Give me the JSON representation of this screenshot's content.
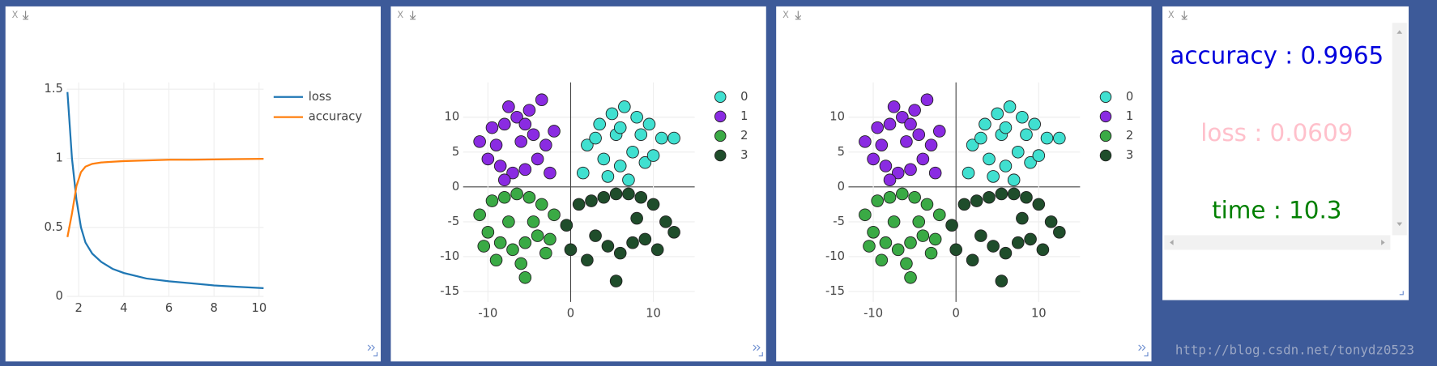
{
  "chart_data": [
    {
      "type": "line",
      "xlim": [
        1.47,
        10.2
      ],
      "ylim": [
        0,
        1.55
      ],
      "xticks": [
        2,
        4,
        6,
        8,
        10
      ],
      "yticks": [
        0,
        0.5,
        1,
        1.5
      ],
      "grid": true,
      "x": [
        1.5,
        1.7,
        1.9,
        2.1,
        2.3,
        2.6,
        3,
        3.5,
        4,
        5,
        6,
        7,
        8,
        9,
        10.2
      ],
      "series": [
        {
          "name": "loss",
          "color": "#1f77b4",
          "values": [
            1.48,
            1.0,
            0.7,
            0.5,
            0.39,
            0.31,
            0.25,
            0.2,
            0.17,
            0.13,
            0.11,
            0.095,
            0.08,
            0.07,
            0.06
          ]
        },
        {
          "name": "accuracy",
          "color": "#ff7f0e",
          "values": [
            0.43,
            0.6,
            0.8,
            0.9,
            0.94,
            0.96,
            0.97,
            0.975,
            0.98,
            0.985,
            0.99,
            0.99,
            0.992,
            0.994,
            0.9965
          ]
        }
      ]
    },
    {
      "type": "scatter",
      "xlim": [
        -13,
        15
      ],
      "ylim": [
        -16.5,
        15
      ],
      "xticks": [
        -10,
        0,
        10
      ],
      "yticks": [
        -15,
        -10,
        -5,
        0,
        5,
        10
      ],
      "grid": true,
      "series": [
        {
          "name": "0",
          "color": "#40e0d0",
          "x": [
            2,
            3.5,
            5,
            6.5,
            8,
            9.5,
            11,
            4,
            6,
            7.5,
            9,
            3,
            5.5,
            8.5,
            10,
            7,
            12.5,
            6,
            4.5,
            1.5
          ],
          "values": [
            6,
            9,
            10.5,
            11.5,
            10,
            9,
            7,
            4,
            3,
            5,
            3.5,
            7,
            7.5,
            7.5,
            4.5,
            1,
            7,
            8.5,
            1.5,
            2
          ]
        },
        {
          "name": "1",
          "color": "#8a2be2",
          "x": [
            -11,
            -9.5,
            -8,
            -6.5,
            -5,
            -3.5,
            -2,
            -10,
            -8.5,
            -7,
            -5.5,
            -4,
            -9,
            -6,
            -3,
            -7.5,
            -4.5,
            -2.5,
            -5.5,
            -8
          ],
          "values": [
            6.5,
            8.5,
            9,
            10,
            11,
            12.5,
            8,
            4,
            3,
            2,
            2.5,
            4,
            6,
            6.5,
            6,
            11.5,
            7.5,
            2,
            9,
            1
          ]
        },
        {
          "name": "2",
          "color": "#3aaa45",
          "x": [
            -11,
            -9.5,
            -8,
            -6.5,
            -5,
            -3.5,
            -2,
            -10,
            -8.5,
            -7,
            -5.5,
            -4,
            -9,
            -6,
            -3,
            -7.5,
            -4.5,
            -5.5,
            -10.5,
            -2.5
          ],
          "values": [
            -4,
            -2,
            -1.5,
            -1,
            -1.5,
            -2.5,
            -4,
            -6.5,
            -8,
            -9,
            -8,
            -7,
            -10.5,
            -11,
            -9.5,
            -5,
            -5,
            -13,
            -8.5,
            -7.5
          ]
        },
        {
          "name": "3",
          "color": "#1f4d2b",
          "x": [
            -0.5,
            1,
            2.5,
            4,
            5.5,
            7,
            8.5,
            10,
            11.5,
            12.5,
            3,
            4.5,
            6,
            7.5,
            9,
            5.5,
            8,
            2,
            10.5,
            0
          ],
          "values": [
            -5.5,
            -2.5,
            -2,
            -1.5,
            -1,
            -1,
            -1.5,
            -2.5,
            -5,
            -6.5,
            -7,
            -8.5,
            -9.5,
            -8,
            -7.5,
            -13.5,
            -4.5,
            -10.5,
            -9,
            -9
          ]
        }
      ]
    },
    {
      "type": "scatter",
      "xlim": [
        -13,
        15
      ],
      "ylim": [
        -16.5,
        15
      ],
      "xticks": [
        -10,
        0,
        10
      ],
      "yticks": [
        -15,
        -10,
        -5,
        0,
        5,
        10
      ],
      "grid": true,
      "series": [
        {
          "name": "0",
          "color": "#40e0d0",
          "x": [
            2,
            3.5,
            5,
            6.5,
            8,
            9.5,
            11,
            4,
            6,
            7.5,
            9,
            3,
            5.5,
            8.5,
            10,
            7,
            12.5,
            6,
            4.5,
            1.5
          ],
          "values": [
            6,
            9,
            10.5,
            11.5,
            10,
            9,
            7,
            4,
            3,
            5,
            3.5,
            7,
            7.5,
            7.5,
            4.5,
            1,
            7,
            8.5,
            1.5,
            2
          ]
        },
        {
          "name": "1",
          "color": "#8a2be2",
          "x": [
            -11,
            -9.5,
            -8,
            -6.5,
            -5,
            -3.5,
            -2,
            -10,
            -8.5,
            -7,
            -5.5,
            -4,
            -9,
            -6,
            -3,
            -7.5,
            -4.5,
            -2.5,
            -5.5,
            -8
          ],
          "values": [
            6.5,
            8.5,
            9,
            10,
            11,
            12.5,
            8,
            4,
            3,
            2,
            2.5,
            4,
            6,
            6.5,
            6,
            11.5,
            7.5,
            2,
            9,
            1
          ]
        },
        {
          "name": "2",
          "color": "#3aaa45",
          "x": [
            -11,
            -9.5,
            -8,
            -6.5,
            -5,
            -3.5,
            -2,
            -10,
            -8.5,
            -7,
            -5.5,
            -4,
            -9,
            -6,
            -3,
            -7.5,
            -4.5,
            -5.5,
            -10.5,
            -2.5
          ],
          "values": [
            -4,
            -2,
            -1.5,
            -1,
            -1.5,
            -2.5,
            -4,
            -6.5,
            -8,
            -9,
            -8,
            -7,
            -10.5,
            -11,
            -9.5,
            -5,
            -5,
            -13,
            -8.5,
            -7.5
          ]
        },
        {
          "name": "3",
          "color": "#1f4d2b",
          "x": [
            -0.5,
            1,
            2.5,
            4,
            5.5,
            7,
            8.5,
            10,
            11.5,
            12.5,
            3,
            4.5,
            6,
            7.5,
            9,
            5.5,
            8,
            2,
            10.5,
            0
          ],
          "values": [
            -5.5,
            -2.5,
            -2,
            -1.5,
            -1,
            -1,
            -1.5,
            -2.5,
            -5,
            -6.5,
            -7,
            -8.5,
            -9.5,
            -8,
            -7.5,
            -13.5,
            -4.5,
            -10.5,
            -9,
            -9
          ]
        }
      ]
    }
  ],
  "text_panel": {
    "lines": [
      {
        "text": "accuracy : 0.9965",
        "color": "#0000dd"
      },
      {
        "text": "loss : 0.0609",
        "color": "#ffc0cb"
      },
      {
        "text": "time : 10.3",
        "color": "#008000"
      }
    ]
  },
  "close_label": "X",
  "watermark": "http://blog.csdn.net/tonydz0523"
}
